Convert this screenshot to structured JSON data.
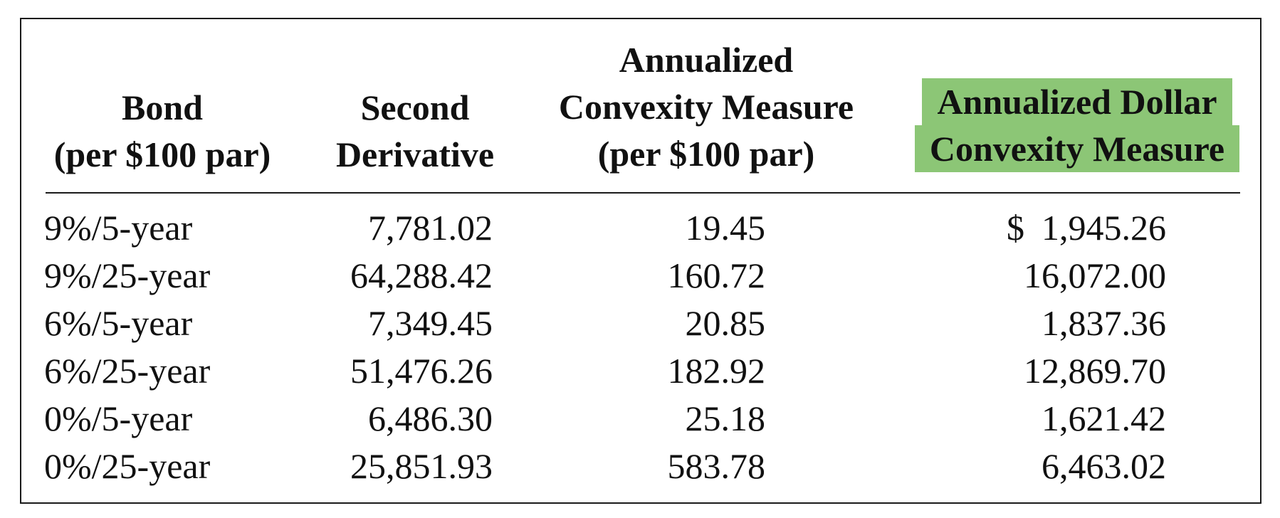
{
  "headers": {
    "bond": [
      "Bond",
      "(per $100 par)"
    ],
    "second": [
      "Second",
      "Derivative"
    ],
    "convexity": [
      "Annualized",
      "Convexity Measure",
      "(per $100 par)"
    ],
    "dollar": [
      "Annualized Dollar",
      "Convexity Measure"
    ]
  },
  "highlight_color": "#8cc676",
  "rows": [
    {
      "bond": "9%/5-year",
      "second": "7,781.02",
      "convexity": "19.45",
      "currency": "$",
      "dollar": "1,945.26"
    },
    {
      "bond": "9%/25-year",
      "second": "64,288.42",
      "convexity": "160.72",
      "currency": "",
      "dollar": "16,072.00"
    },
    {
      "bond": "6%/5-year",
      "second": "7,349.45",
      "convexity": "20.85",
      "currency": "",
      "dollar": "1,837.36"
    },
    {
      "bond": "6%/25-year",
      "second": "51,476.26",
      "convexity": "182.92",
      "currency": "",
      "dollar": "12,869.70"
    },
    {
      "bond": "0%/5-year",
      "second": "6,486.30",
      "convexity": "25.18",
      "currency": "",
      "dollar": "1,621.42"
    },
    {
      "bond": "0%/25-year",
      "second": "25,851.93",
      "convexity": "583.78",
      "currency": "",
      "dollar": "6,463.02"
    }
  ]
}
